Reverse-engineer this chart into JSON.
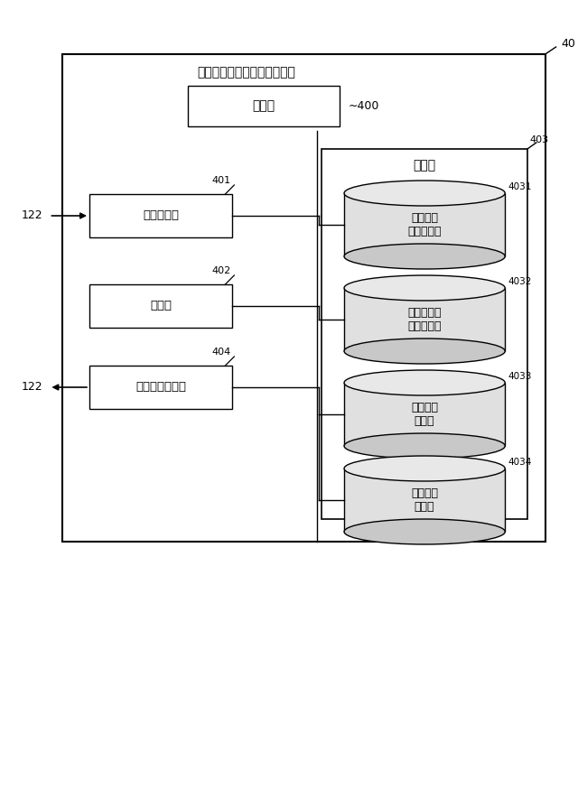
{
  "bg_color": "#ffffff",
  "title": "統計情報データベースサーバ",
  "label_40": "40",
  "label_403": "403",
  "label_400": "400",
  "control_label": "制御部",
  "memory_label": "記憶部",
  "box_labels": [
    "要求受付部",
    "検索部",
    "統計情報出力部"
  ],
  "box_ids": [
    "401",
    "402",
    "404"
  ],
  "cyl_labels": [
    "製造情報\n統計データ",
    "原材料情報\n統計データ",
    "過去事例\nデータ",
    "事後対策\nデータ"
  ],
  "cyl_ids": [
    "4031",
    "4032",
    "4033",
    "4034"
  ],
  "arrow_label": "122",
  "font_jp": "IPAexGothic"
}
